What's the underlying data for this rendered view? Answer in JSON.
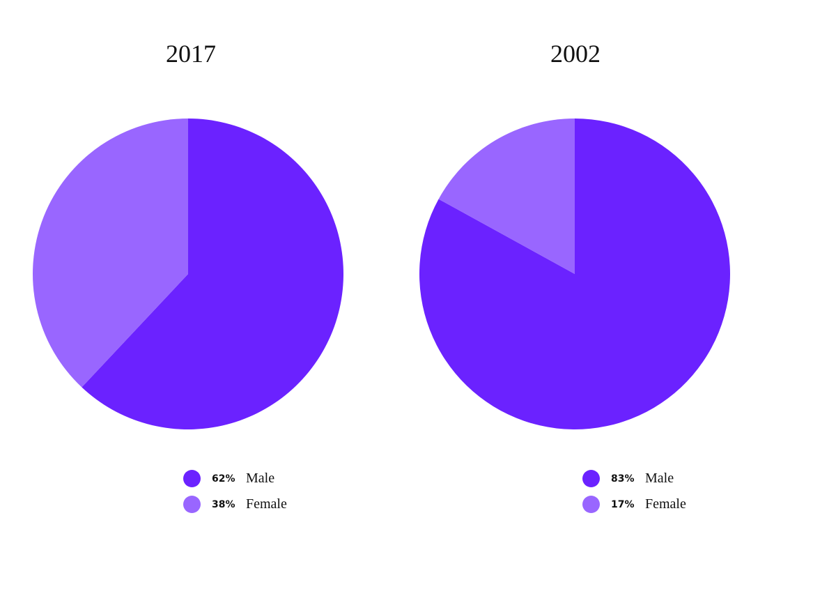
{
  "colors": {
    "male": "#6b22ff",
    "female": "#9966ff"
  },
  "chart_data": [
    {
      "type": "pie",
      "title": "2017",
      "slices": [
        {
          "label": "Male",
          "value": 62,
          "display": "62%",
          "color": "#6b22ff"
        },
        {
          "label": "Female",
          "value": 38,
          "display": "38%",
          "color": "#9966ff"
        }
      ],
      "legend_position": "bottom"
    },
    {
      "type": "pie",
      "title": "2002",
      "slices": [
        {
          "label": "Male",
          "value": 83,
          "display": "83%",
          "color": "#6b22ff"
        },
        {
          "label": "Female",
          "value": 17,
          "display": "17%",
          "color": "#9966ff"
        }
      ],
      "legend_position": "bottom"
    }
  ]
}
